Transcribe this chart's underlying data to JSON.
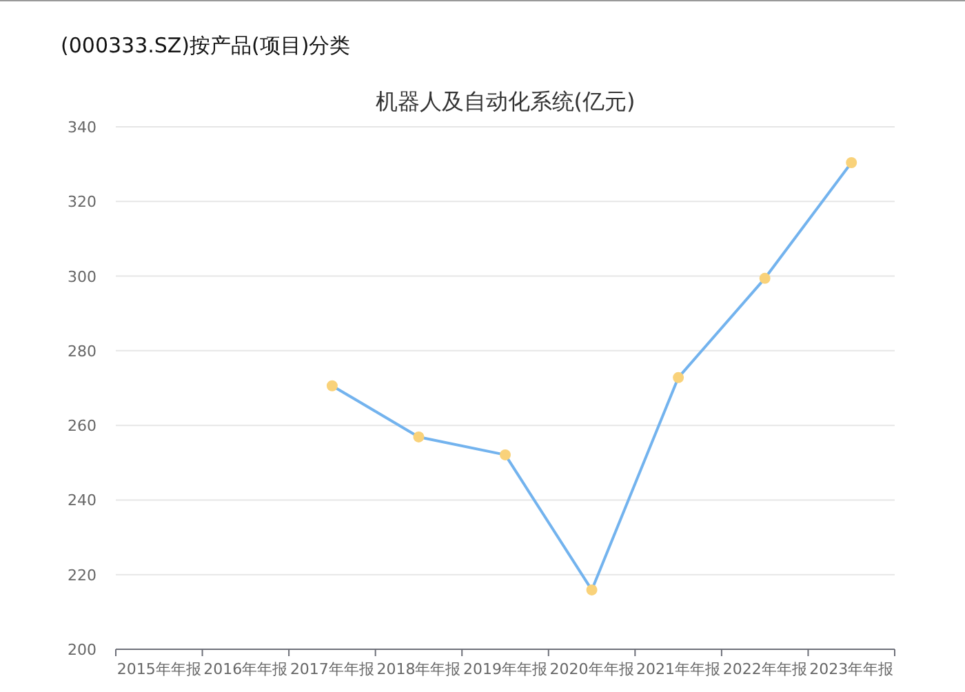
{
  "chart_data": {
    "type": "line",
    "title": "机器人及自动化系统(亿元)",
    "subtitle": "(000333.SZ)按产品(项目)分类",
    "categories": [
      "2015年年报",
      "2016年年报",
      "2017年年报",
      "2018年年报",
      "2019年年报",
      "2020年年报",
      "2021年年报",
      "2022年年报",
      "2023年年报"
    ],
    "series": [
      {
        "color": "#73b3ee",
        "values": [
          null,
          null,
          270.6,
          256.9,
          252.1,
          215.9,
          272.8,
          299.4,
          330.4
        ]
      }
    ],
    "ylim": [
      200,
      340
    ],
    "yticks": [
      200,
      220,
      240,
      260,
      280,
      300,
      320,
      340
    ],
    "grid": "y",
    "marker": "circle",
    "line_style": "solid"
  }
}
